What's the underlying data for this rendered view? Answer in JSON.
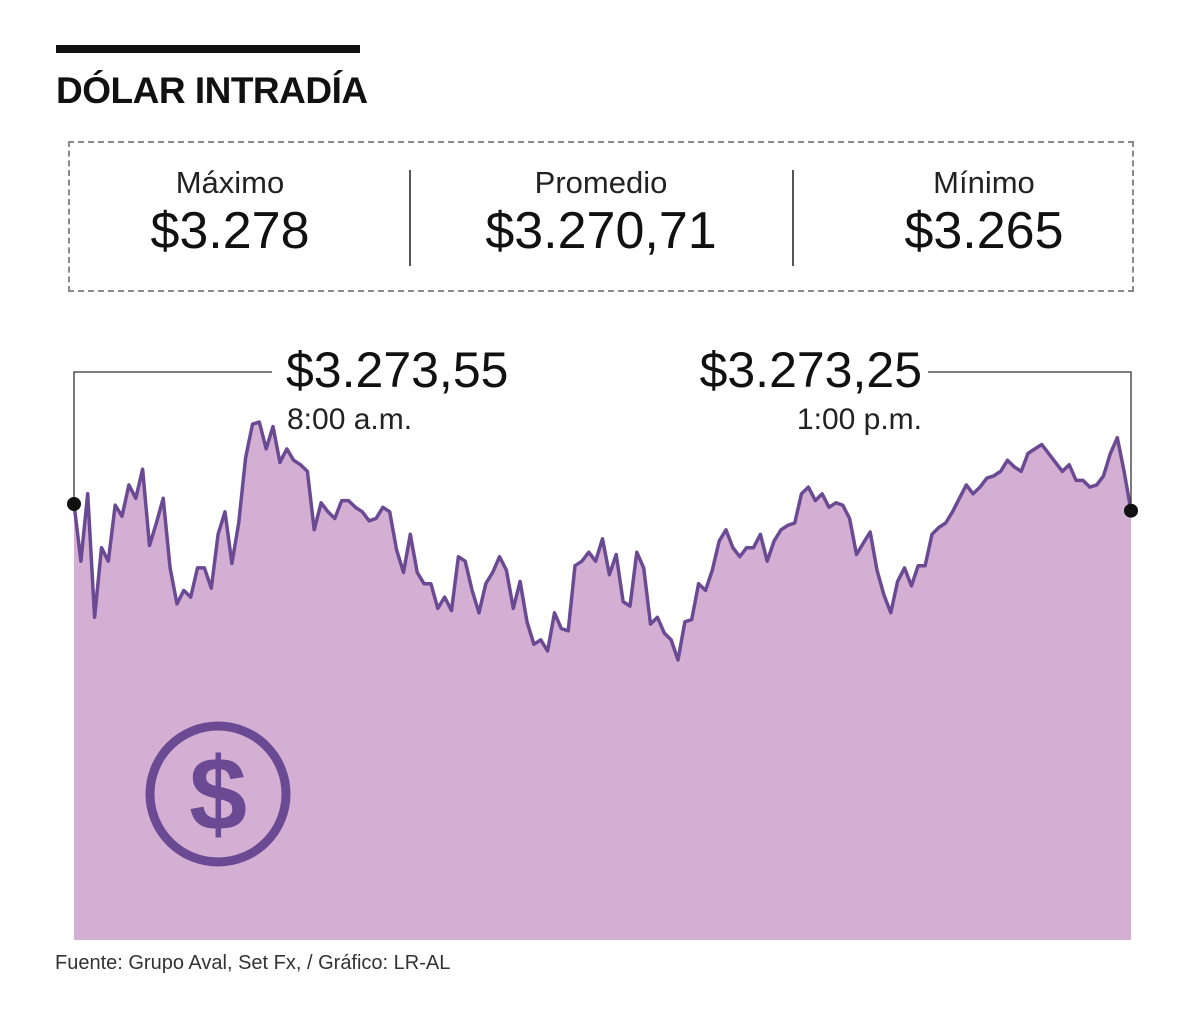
{
  "header": {
    "title": "DÓLAR INTRADÍA"
  },
  "stats": {
    "max": {
      "label": "Máximo",
      "value": "$3.278"
    },
    "avg": {
      "label": "Promedio",
      "value": "$3.270,71"
    },
    "min": {
      "label": "Mínimo",
      "value": "$3.265"
    }
  },
  "callouts": {
    "open": {
      "value": "$3.273,55",
      "time": "8:00 a.m."
    },
    "close": {
      "value": "$3.273,25",
      "time": "1:00 p.m."
    }
  },
  "icon": {
    "name": "dollar-coin-icon"
  },
  "source": "Fuente: Grupo Aval, Set Fx, / Gráfico: LR-AL",
  "colors": {
    "line": "#6b4a94",
    "fill": "#d4afd4",
    "icon": "#6b4a94",
    "text": "#111111"
  },
  "chart_data": {
    "type": "area",
    "title": "DÓLAR INTRADÍA",
    "xlabel": "",
    "ylabel": "",
    "x_start_label": "8:00 a.m.",
    "x_end_label": "1:00 p.m.",
    "ylim": [
      3258,
      3280
    ],
    "start_value": 3273.55,
    "end_value": 3273.25,
    "max": 3278,
    "min": 3265,
    "average": 3270.71,
    "values": [
      3273.55,
      3271.0,
      3274.0,
      3268.5,
      3271.6,
      3271.0,
      3273.5,
      3273.0,
      3274.4,
      3273.8,
      3275.1,
      3271.7,
      3272.7,
      3273.8,
      3270.7,
      3269.1,
      3269.7,
      3269.4,
      3270.7,
      3270.7,
      3269.8,
      3272.2,
      3273.2,
      3270.9,
      3272.7,
      3275.6,
      3277.1,
      3277.2,
      3276.0,
      3277.0,
      3275.4,
      3276.0,
      3275.5,
      3275.3,
      3275.0,
      3272.4,
      3273.6,
      3273.2,
      3272.9,
      3273.7,
      3273.7,
      3273.4,
      3273.2,
      3272.8,
      3272.9,
      3273.4,
      3273.2,
      3271.5,
      3270.5,
      3272.2,
      3270.5,
      3270.0,
      3270.0,
      3268.9,
      3269.4,
      3268.8,
      3271.2,
      3271.0,
      3269.7,
      3268.7,
      3270.0,
      3270.5,
      3271.2,
      3270.6,
      3268.9,
      3270.1,
      3268.3,
      3267.3,
      3267.5,
      3267.0,
      3268.7,
      3268.0,
      3267.9,
      3270.8,
      3271.0,
      3271.4,
      3271.0,
      3272.0,
      3270.4,
      3271.3,
      3269.2,
      3269.0,
      3271.4,
      3270.7,
      3268.2,
      3268.5,
      3267.8,
      3267.5,
      3266.6,
      3268.3,
      3268.4,
      3270.0,
      3269.7,
      3270.6,
      3271.9,
      3272.4,
      3271.6,
      3271.2,
      3271.6,
      3271.6,
      3272.2,
      3271.0,
      3271.9,
      3272.4,
      3272.6,
      3272.7,
      3274.0,
      3274.3,
      3273.7,
      3274.0,
      3273.4,
      3273.6,
      3273.5,
      3272.9,
      3271.3,
      3271.8,
      3272.3,
      3270.6,
      3269.5,
      3268.7,
      3270.1,
      3270.7,
      3269.9,
      3270.8,
      3270.8,
      3272.2,
      3272.5,
      3272.7,
      3273.2,
      3273.8,
      3274.4,
      3274.0,
      3274.3,
      3274.7,
      3274.8,
      3275.0,
      3275.5,
      3275.2,
      3275.0,
      3275.8,
      3276.0,
      3276.2,
      3275.8,
      3275.4,
      3275.0,
      3275.3,
      3274.6,
      3274.6,
      3274.3,
      3274.4,
      3274.8,
      3275.8,
      3276.5,
      3275.0,
      3273.25
    ]
  }
}
